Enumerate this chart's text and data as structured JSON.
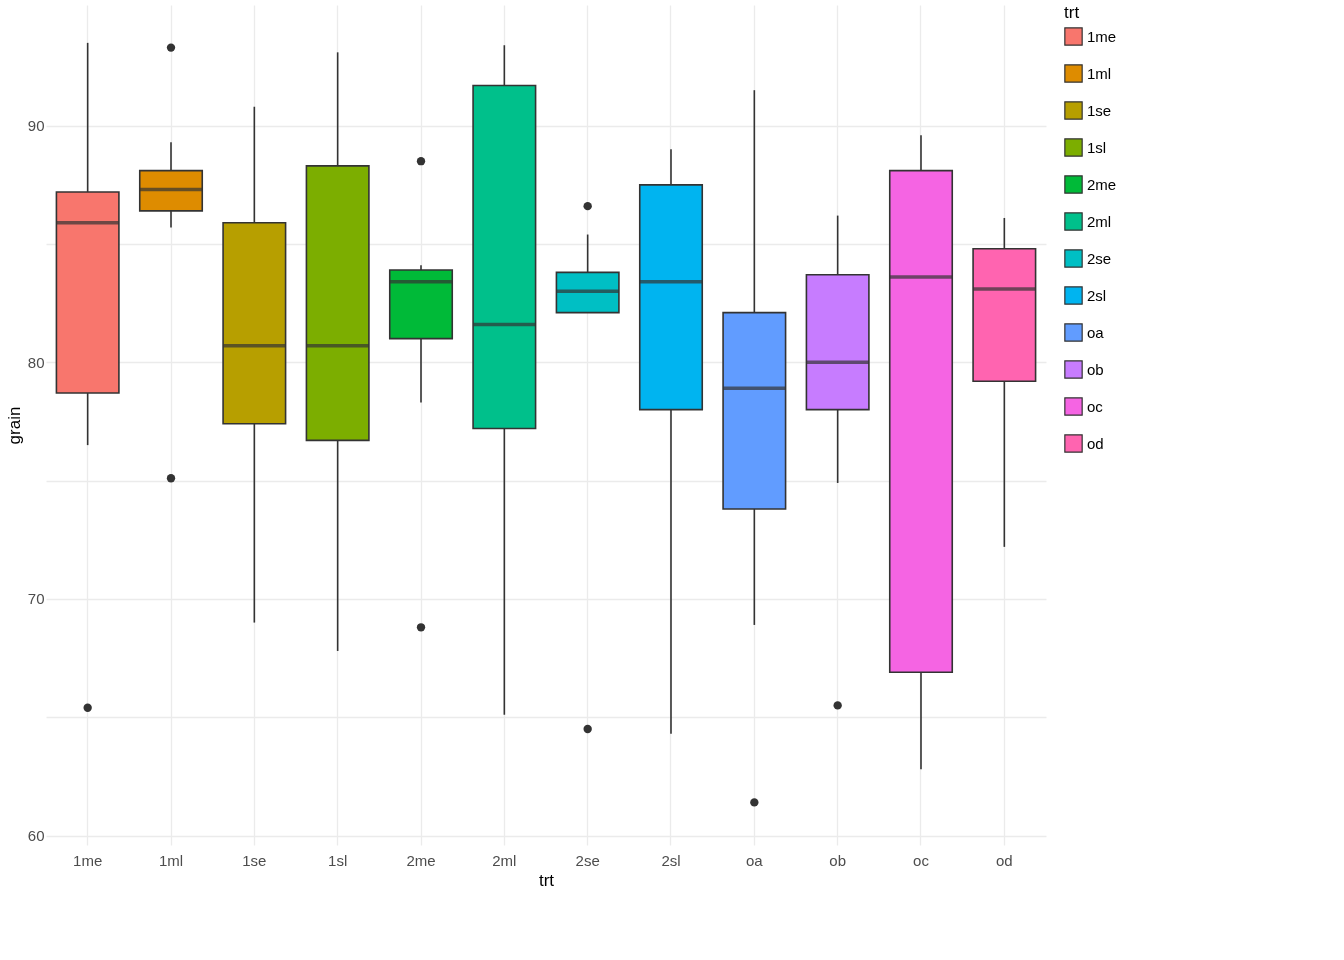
{
  "chart_data": {
    "type": "box",
    "xlabel": "trt",
    "ylabel": "grain",
    "legend_title": "trt",
    "legend": "right",
    "grid": true,
    "categories": [
      "1me",
      "1ml",
      "1se",
      "1sl",
      "2me",
      "2ml",
      "2se",
      "2sl",
      "oa",
      "ob",
      "oc",
      "od"
    ],
    "ylim": [
      59.6,
      95.1
    ],
    "yticks": [
      {
        "value": 60,
        "label": "60"
      },
      {
        "value": 65,
        "label": null
      },
      {
        "value": 70,
        "label": "70"
      },
      {
        "value": 75,
        "label": null
      },
      {
        "value": 80,
        "label": "80"
      },
      {
        "value": 85,
        "label": null
      },
      {
        "value": 90,
        "label": "90"
      }
    ],
    "series": [
      {
        "name": "1me",
        "color": "#f8766d",
        "boxes": [
          {
            "low": 76.5,
            "q1": 78.7,
            "median": 85.9,
            "q3": 87.2,
            "high": 93.5,
            "outliers": [
              65.4
            ]
          },
          null,
          null,
          null,
          null,
          null,
          null,
          null,
          null,
          null,
          null,
          null
        ]
      },
      {
        "name": "1ml",
        "color": "#de8c00",
        "boxes": [
          null,
          {
            "low": 85.7,
            "q1": 86.4,
            "median": 87.3,
            "q3": 88.1,
            "high": 89.3,
            "outliers": [
              93.3,
              75.1
            ]
          },
          null,
          null,
          null,
          null,
          null,
          null,
          null,
          null,
          null,
          null
        ]
      },
      {
        "name": "1se",
        "color": "#b79f00",
        "boxes": [
          null,
          null,
          {
            "low": 69.0,
            "q1": 77.4,
            "median": 80.7,
            "q3": 85.9,
            "high": 90.8
          },
          null,
          null,
          null,
          null,
          null,
          null,
          null,
          null,
          null
        ]
      },
      {
        "name": "1sl",
        "color": "#7cae00",
        "boxes": [
          null,
          null,
          null,
          {
            "low": 67.8,
            "q1": 76.7,
            "median": 80.7,
            "q3": 88.3,
            "high": 93.1
          },
          null,
          null,
          null,
          null,
          null,
          null,
          null,
          null
        ]
      },
      {
        "name": "2me",
        "color": "#00ba38",
        "boxes": [
          null,
          null,
          null,
          null,
          {
            "low": 78.3,
            "q1": 81.0,
            "median": 83.4,
            "q3": 83.9,
            "high": 84.1,
            "outliers": [
              88.5,
              68.8
            ]
          },
          null,
          null,
          null,
          null,
          null,
          null,
          null
        ]
      },
      {
        "name": "2ml",
        "color": "#00c08b",
        "boxes": [
          null,
          null,
          null,
          null,
          null,
          {
            "low": 65.1,
            "q1": 77.2,
            "median": 81.6,
            "q3": 91.7,
            "high": 93.4
          },
          null,
          null,
          null,
          null,
          null,
          null
        ]
      },
      {
        "name": "2se",
        "color": "#00bfc4",
        "boxes": [
          null,
          null,
          null,
          null,
          null,
          null,
          {
            "low": 82.1,
            "q1": 82.1,
            "median": 83.0,
            "q3": 83.8,
            "high": 85.4,
            "outliers": [
              86.6,
              64.5
            ]
          },
          null,
          null,
          null,
          null,
          null
        ]
      },
      {
        "name": "2sl",
        "color": "#00b4f0",
        "boxes": [
          null,
          null,
          null,
          null,
          null,
          null,
          null,
          {
            "low": 64.3,
            "q1": 78.0,
            "median": 83.4,
            "q3": 87.5,
            "high": 89.0
          },
          null,
          null,
          null,
          null
        ]
      },
      {
        "name": "oa",
        "color": "#619cff",
        "boxes": [
          null,
          null,
          null,
          null,
          null,
          null,
          null,
          null,
          {
            "low": 68.9,
            "q1": 73.8,
            "median": 78.9,
            "q3": 82.1,
            "high": 91.5,
            "outliers": [
              61.4
            ]
          },
          null,
          null,
          null
        ]
      },
      {
        "name": "ob",
        "color": "#c77cff",
        "boxes": [
          null,
          null,
          null,
          null,
          null,
          null,
          null,
          null,
          null,
          {
            "low": 74.9,
            "q1": 78.0,
            "median": 80.0,
            "q3": 83.7,
            "high": 86.2,
            "outliers": [
              65.5
            ]
          },
          null,
          null
        ]
      },
      {
        "name": "oc",
        "color": "#f564e3",
        "boxes": [
          null,
          null,
          null,
          null,
          null,
          null,
          null,
          null,
          null,
          null,
          {
            "low": 62.8,
            "q1": 66.9,
            "median": 83.6,
            "q3": 88.1,
            "high": 89.6
          },
          null
        ]
      },
      {
        "name": "od",
        "color": "#ff64b0",
        "boxes": [
          null,
          null,
          null,
          null,
          null,
          null,
          null,
          null,
          null,
          null,
          null,
          {
            "low": 72.2,
            "q1": 79.2,
            "median": 83.1,
            "q3": 84.8,
            "high": 86.1
          }
        ]
      }
    ]
  }
}
